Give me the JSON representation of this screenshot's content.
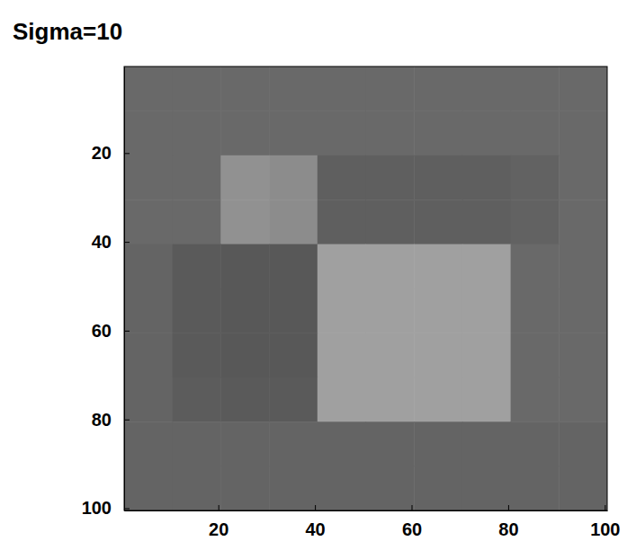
{
  "chart_data": {
    "type": "heatmap",
    "title": "Sigma=10",
    "xlim": [
      0.5,
      100.5
    ],
    "ylim": [
      0.5,
      100.5
    ],
    "xticks": [
      20,
      40,
      60,
      80,
      100
    ],
    "yticks": [
      20,
      40,
      60,
      80,
      100
    ],
    "grid": false,
    "color_range": [
      0,
      255
    ],
    "cells": [
      [
        105,
        105,
        105,
        105,
        105,
        105,
        105,
        105,
        105,
        105
      ],
      [
        105,
        105,
        105,
        105,
        105,
        105,
        105,
        105,
        105,
        105
      ],
      [
        105,
        105,
        145,
        140,
        95,
        95,
        95,
        95,
        98,
        105
      ],
      [
        105,
        105,
        145,
        140,
        95,
        95,
        95,
        95,
        98,
        105
      ],
      [
        100,
        90,
        88,
        88,
        160,
        160,
        160,
        160,
        105,
        105
      ],
      [
        100,
        90,
        88,
        88,
        160,
        160,
        160,
        160,
        105,
        105
      ],
      [
        100,
        90,
        88,
        88,
        160,
        160,
        160,
        160,
        105,
        105
      ],
      [
        100,
        92,
        90,
        90,
        160,
        160,
        160,
        160,
        105,
        105
      ],
      [
        100,
        100,
        100,
        100,
        100,
        100,
        100,
        100,
        100,
        100
      ],
      [
        100,
        100,
        100,
        100,
        100,
        100,
        100,
        100,
        100,
        100
      ]
    ]
  }
}
